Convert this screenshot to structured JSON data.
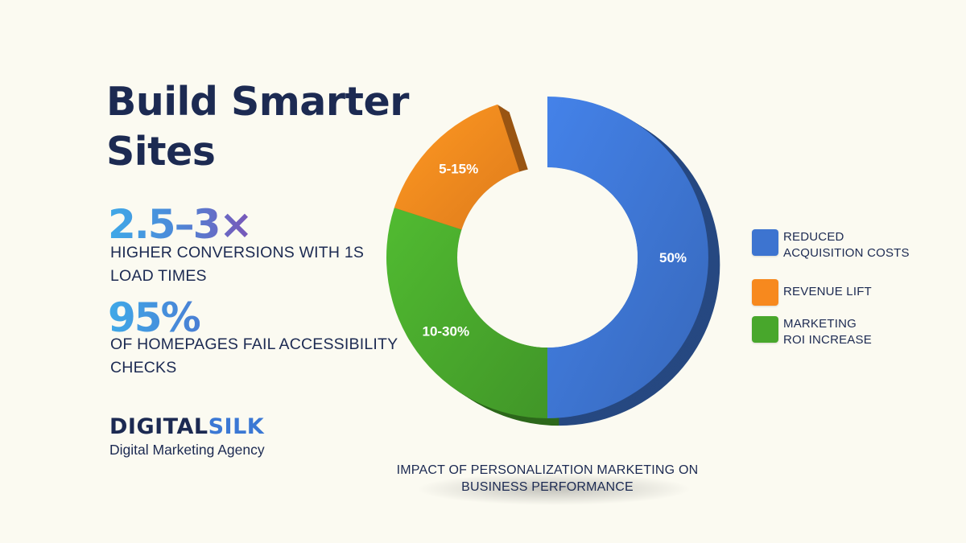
{
  "headline": "Build Smarter Sites",
  "stats": [
    {
      "value": "2.5–3×",
      "caption": "HIGHER CONVERSIONS WITH 1S LOAD TIMES"
    },
    {
      "value": "95%",
      "caption": "OF HOMEPAGES FAIL ACCESSIBILITY CHECKS"
    }
  ],
  "brand": {
    "name_part1": "DIGITAL",
    "name_part2": "SILK",
    "tagline": "Digital Marketing Agency"
  },
  "colors": {
    "background": "#fbfaf1",
    "navy": "#1c2a52",
    "blue": "#3d74d0",
    "orange": "#f7891e",
    "green": "#48a72c"
  },
  "chart_data": {
    "type": "pie",
    "variant": "donut-3d",
    "title": "IMPACT OF PERSONALIZATION MARKETING ON BUSINESS PERFORMANCE",
    "legend_position": "right",
    "slices": [
      {
        "label": "REDUCED ACQUISITION COSTS",
        "value_label": "50%",
        "share": 0.5,
        "color": "#3d74d0"
      },
      {
        "label": "MARKETING ROI INCREASE",
        "value_label": "10-30%",
        "share": 0.3,
        "color": "#48a72c"
      },
      {
        "label": "REVENUE LIFT",
        "value_label": "5-15%",
        "share": 0.15,
        "color": "#f7891e"
      }
    ]
  }
}
